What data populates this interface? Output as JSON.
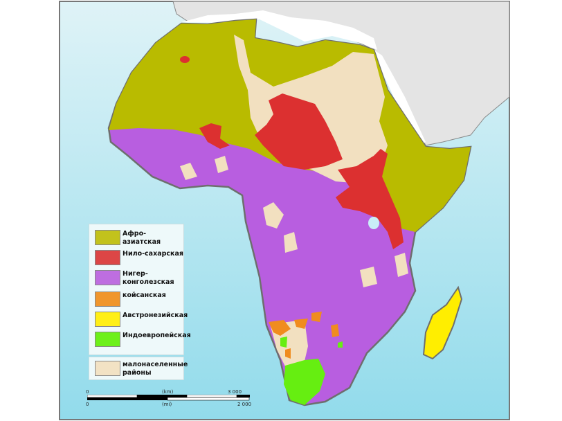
{
  "legend": {
    "items": [
      {
        "label": "Афро-азиатская",
        "color": "#c2c21c"
      },
      {
        "label": "Нило-сахарская",
        "color": "#dc4646"
      },
      {
        "label": "Нигер-конголезская",
        "color": "#be6ee0"
      },
      {
        "label": "койсанская",
        "color": "#f0962c"
      },
      {
        "label": "Австронезийская",
        "color": "#ffef16"
      },
      {
        "label": "Индоевропейская",
        "color": "#6df01a"
      }
    ],
    "sparse": {
      "label": "малонаселенные районы",
      "color": "#f2e2c4"
    }
  },
  "scale": {
    "km_zero": "0",
    "km_unit": "(km)",
    "km_max": "3 000",
    "mi_zero": "0",
    "mi_unit": "(mi)",
    "mi_max": "2 000"
  },
  "colors": {
    "ocean_top": "#d8f1f6",
    "ocean_bottom": "#94dcec",
    "other_land": "#e4e4e4",
    "afroasiatic": "#b9bb00",
    "nilosaharan": "#dc3030",
    "nigercongo": "#b85ee0",
    "khoisan": "#f08c1e",
    "austronesian": "#ffee00",
    "indoeuropean": "#66ee11",
    "sparse": "#f2e0c0"
  }
}
